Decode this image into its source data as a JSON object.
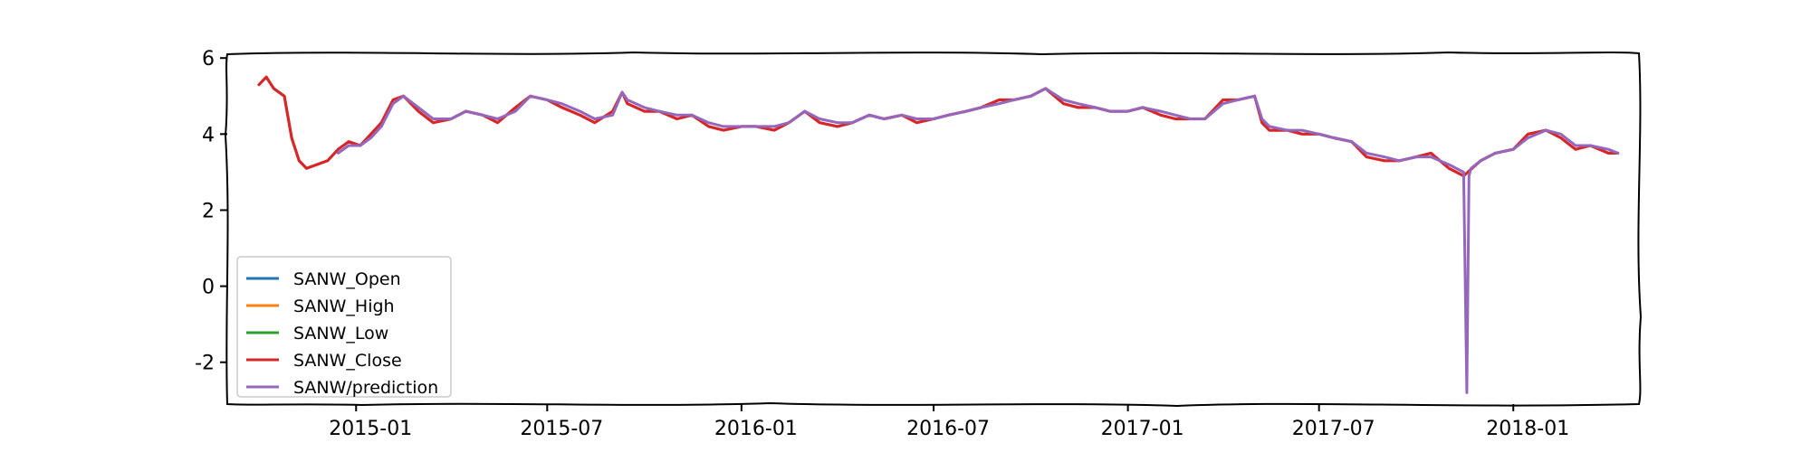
{
  "chart_data": {
    "type": "line",
    "title": "",
    "xlabel": "",
    "ylabel": "",
    "x_range": [
      "2014-09-01",
      "2018-04-30"
    ],
    "ylim": [
      -3.1,
      6.1
    ],
    "y_ticks": [
      {
        "value": -2,
        "label": "-2"
      },
      {
        "value": 0,
        "label": "0"
      },
      {
        "value": 2,
        "label": "2"
      },
      {
        "value": 4,
        "label": "4"
      },
      {
        "value": 6,
        "label": "6"
      }
    ],
    "x_ticks": [
      {
        "date": "2015-01-01",
        "label": "2015-01"
      },
      {
        "date": "2015-07-01",
        "label": "2015-07"
      },
      {
        "date": "2016-01-01",
        "label": "2016-01"
      },
      {
        "date": "2016-07-01",
        "label": "2016-07"
      },
      {
        "date": "2017-01-01",
        "label": "2017-01"
      },
      {
        "date": "2017-07-01",
        "label": "2017-07"
      },
      {
        "date": "2018-01-01",
        "label": "2018-01"
      }
    ],
    "grid": false,
    "legend_position": "lower-left",
    "series": [
      {
        "name": "SANW_Open",
        "color": "#1f77b4",
        "x": [],
        "values": []
      },
      {
        "name": "SANW_High",
        "color": "#ff7f0e",
        "x": [],
        "values": []
      },
      {
        "name": "SANW_Low",
        "color": "#2ca02c",
        "x": [],
        "values": []
      },
      {
        "name": "SANW_Close",
        "color": "#d62728",
        "x": [
          "2014-10-01",
          "2014-10-08",
          "2014-10-15",
          "2014-10-25",
          "2014-11-01",
          "2014-11-08",
          "2014-11-15",
          "2014-11-25",
          "2014-12-05",
          "2014-12-15",
          "2014-12-25",
          "2015-01-05",
          "2015-01-15",
          "2015-01-25",
          "2015-02-05",
          "2015-02-15",
          "2015-03-01",
          "2015-03-15",
          "2015-04-01",
          "2015-04-15",
          "2015-05-01",
          "2015-05-15",
          "2015-06-01",
          "2015-06-15",
          "2015-07-01",
          "2015-07-15",
          "2015-08-01",
          "2015-08-15",
          "2015-09-01",
          "2015-09-10",
          "2015-09-15",
          "2015-10-01",
          "2015-10-15",
          "2015-11-01",
          "2015-11-15",
          "2015-12-01",
          "2015-12-15",
          "2016-01-01",
          "2016-01-15",
          "2016-02-01",
          "2016-02-15",
          "2016-03-01",
          "2016-03-15",
          "2016-04-01",
          "2016-04-15",
          "2016-05-01",
          "2016-05-15",
          "2016-06-01",
          "2016-06-15",
          "2016-07-01",
          "2016-07-15",
          "2016-08-01",
          "2016-08-15",
          "2016-09-01",
          "2016-09-15",
          "2016-10-01",
          "2016-10-15",
          "2016-11-01",
          "2016-11-15",
          "2016-12-01",
          "2016-12-15",
          "2017-01-01",
          "2017-01-15",
          "2017-02-01",
          "2017-02-15",
          "2017-03-01",
          "2017-03-15",
          "2017-04-01",
          "2017-04-15",
          "2017-05-01",
          "2017-05-08",
          "2017-05-15",
          "2017-06-01",
          "2017-06-15",
          "2017-07-01",
          "2017-07-15",
          "2017-08-01",
          "2017-08-15",
          "2017-09-01",
          "2017-09-15",
          "2017-10-01",
          "2017-10-15",
          "2017-11-01",
          "2017-11-15",
          "2017-12-01",
          "2017-12-15",
          "2018-01-01",
          "2018-01-15",
          "2018-02-01",
          "2018-02-15",
          "2018-03-01",
          "2018-03-15",
          "2018-04-01",
          "2018-04-10"
        ],
        "values": [
          5.3,
          5.5,
          5.2,
          5.0,
          3.9,
          3.3,
          3.1,
          3.2,
          3.3,
          3.6,
          3.8,
          3.7,
          4.0,
          4.3,
          4.9,
          5.0,
          4.6,
          4.3,
          4.4,
          4.6,
          4.5,
          4.3,
          4.7,
          5.0,
          4.9,
          4.7,
          4.5,
          4.3,
          4.6,
          5.1,
          4.8,
          4.6,
          4.6,
          4.4,
          4.5,
          4.2,
          4.1,
          4.2,
          4.2,
          4.1,
          4.3,
          4.6,
          4.3,
          4.2,
          4.3,
          4.5,
          4.4,
          4.5,
          4.3,
          4.4,
          4.5,
          4.6,
          4.7,
          4.9,
          4.9,
          5.0,
          5.2,
          4.8,
          4.7,
          4.7,
          4.6,
          4.6,
          4.7,
          4.5,
          4.4,
          4.4,
          4.4,
          4.9,
          4.9,
          5.0,
          4.3,
          4.1,
          4.1,
          4.0,
          4.0,
          3.9,
          3.8,
          3.4,
          3.3,
          3.3,
          3.4,
          3.5,
          3.1,
          2.9,
          3.3,
          3.5,
          3.6,
          4.0,
          4.1,
          3.9,
          3.6,
          3.7,
          3.5,
          3.5
        ]
      },
      {
        "name": "SANW/prediction",
        "color": "#9467bd",
        "x": [
          "2014-12-15",
          "2014-12-25",
          "2015-01-05",
          "2015-01-15",
          "2015-01-25",
          "2015-02-05",
          "2015-02-15",
          "2015-03-01",
          "2015-03-15",
          "2015-04-01",
          "2015-04-15",
          "2015-05-01",
          "2015-05-15",
          "2015-06-01",
          "2015-06-15",
          "2015-07-01",
          "2015-07-15",
          "2015-08-01",
          "2015-08-15",
          "2015-09-01",
          "2015-09-10",
          "2015-09-15",
          "2015-10-01",
          "2015-10-15",
          "2015-11-01",
          "2015-11-15",
          "2015-12-01",
          "2015-12-15",
          "2016-01-01",
          "2016-01-15",
          "2016-02-01",
          "2016-02-15",
          "2016-03-01",
          "2016-03-15",
          "2016-04-01",
          "2016-04-15",
          "2016-05-01",
          "2016-05-15",
          "2016-06-01",
          "2016-06-15",
          "2016-07-01",
          "2016-07-15",
          "2016-08-01",
          "2016-08-15",
          "2016-09-01",
          "2016-09-15",
          "2016-10-01",
          "2016-10-15",
          "2016-11-01",
          "2016-11-15",
          "2016-12-01",
          "2016-12-15",
          "2017-01-01",
          "2017-01-15",
          "2017-02-01",
          "2017-02-15",
          "2017-03-01",
          "2017-03-15",
          "2017-04-01",
          "2017-04-15",
          "2017-05-01",
          "2017-05-08",
          "2017-05-15",
          "2017-06-01",
          "2017-06-15",
          "2017-07-01",
          "2017-07-15",
          "2017-08-01",
          "2017-08-15",
          "2017-09-01",
          "2017-09-15",
          "2017-10-01",
          "2017-10-15",
          "2017-11-01",
          "2017-11-15",
          "2017-11-18",
          "2017-11-20",
          "2017-11-22",
          "2017-12-01",
          "2017-12-15",
          "2018-01-01",
          "2018-01-15",
          "2018-02-01",
          "2018-02-15",
          "2018-03-01",
          "2018-03-15",
          "2018-04-01",
          "2018-04-10"
        ],
        "values": [
          3.5,
          3.7,
          3.7,
          3.9,
          4.2,
          4.8,
          5.0,
          4.7,
          4.4,
          4.4,
          4.6,
          4.5,
          4.4,
          4.6,
          5.0,
          4.9,
          4.8,
          4.6,
          4.4,
          4.5,
          5.1,
          4.9,
          4.7,
          4.6,
          4.5,
          4.5,
          4.3,
          4.2,
          4.2,
          4.2,
          4.2,
          4.3,
          4.6,
          4.4,
          4.3,
          4.3,
          4.5,
          4.4,
          4.5,
          4.4,
          4.4,
          4.5,
          4.6,
          4.7,
          4.8,
          4.9,
          5.0,
          5.2,
          4.9,
          4.8,
          4.7,
          4.6,
          4.6,
          4.7,
          4.6,
          4.5,
          4.4,
          4.4,
          4.8,
          4.9,
          5.0,
          4.4,
          4.2,
          4.1,
          4.1,
          4.0,
          3.9,
          3.8,
          3.5,
          3.4,
          3.3,
          3.4,
          3.4,
          3.2,
          3.0,
          -2.8,
          2.9,
          3.1,
          3.3,
          3.5,
          3.6,
          3.9,
          4.1,
          4.0,
          3.7,
          3.7,
          3.6,
          3.5
        ]
      }
    ]
  }
}
